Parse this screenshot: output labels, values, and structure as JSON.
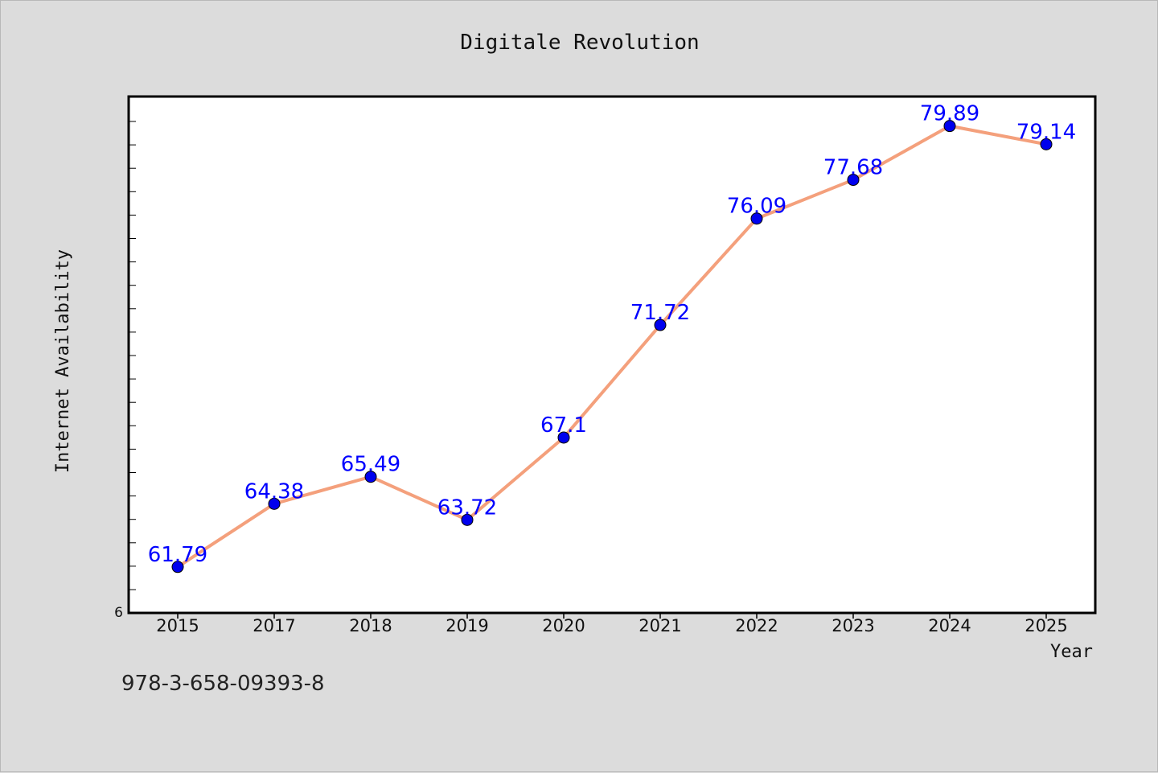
{
  "chart_data": {
    "type": "line",
    "title": "Digitale Revolution",
    "xlabel": "Year",
    "ylabel": "Internet Availability",
    "categories": [
      "2015",
      "2017",
      "2018",
      "2019",
      "2020",
      "2021",
      "2022",
      "2023",
      "2024",
      "2025"
    ],
    "series": [
      {
        "values": [
          61.79,
          64.38,
          65.49,
          63.72,
          67.1,
          71.72,
          76.09,
          77.68,
          79.89,
          79.14
        ],
        "labels": [
          "61.79",
          "64.38",
          "65.49",
          "63.72",
          "67.1",
          "71.72",
          "76.09",
          "77.68",
          "79.89",
          "79.14"
        ]
      }
    ],
    "ylim": [
      59.9,
      81.1
    ],
    "y_tick_label": "6",
    "grid": false,
    "line_color": "#f4a07c",
    "marker_color": "#0000ee",
    "label_color": "#0000ff"
  },
  "footer": {
    "isbn": "978-3-658-09393-8"
  }
}
